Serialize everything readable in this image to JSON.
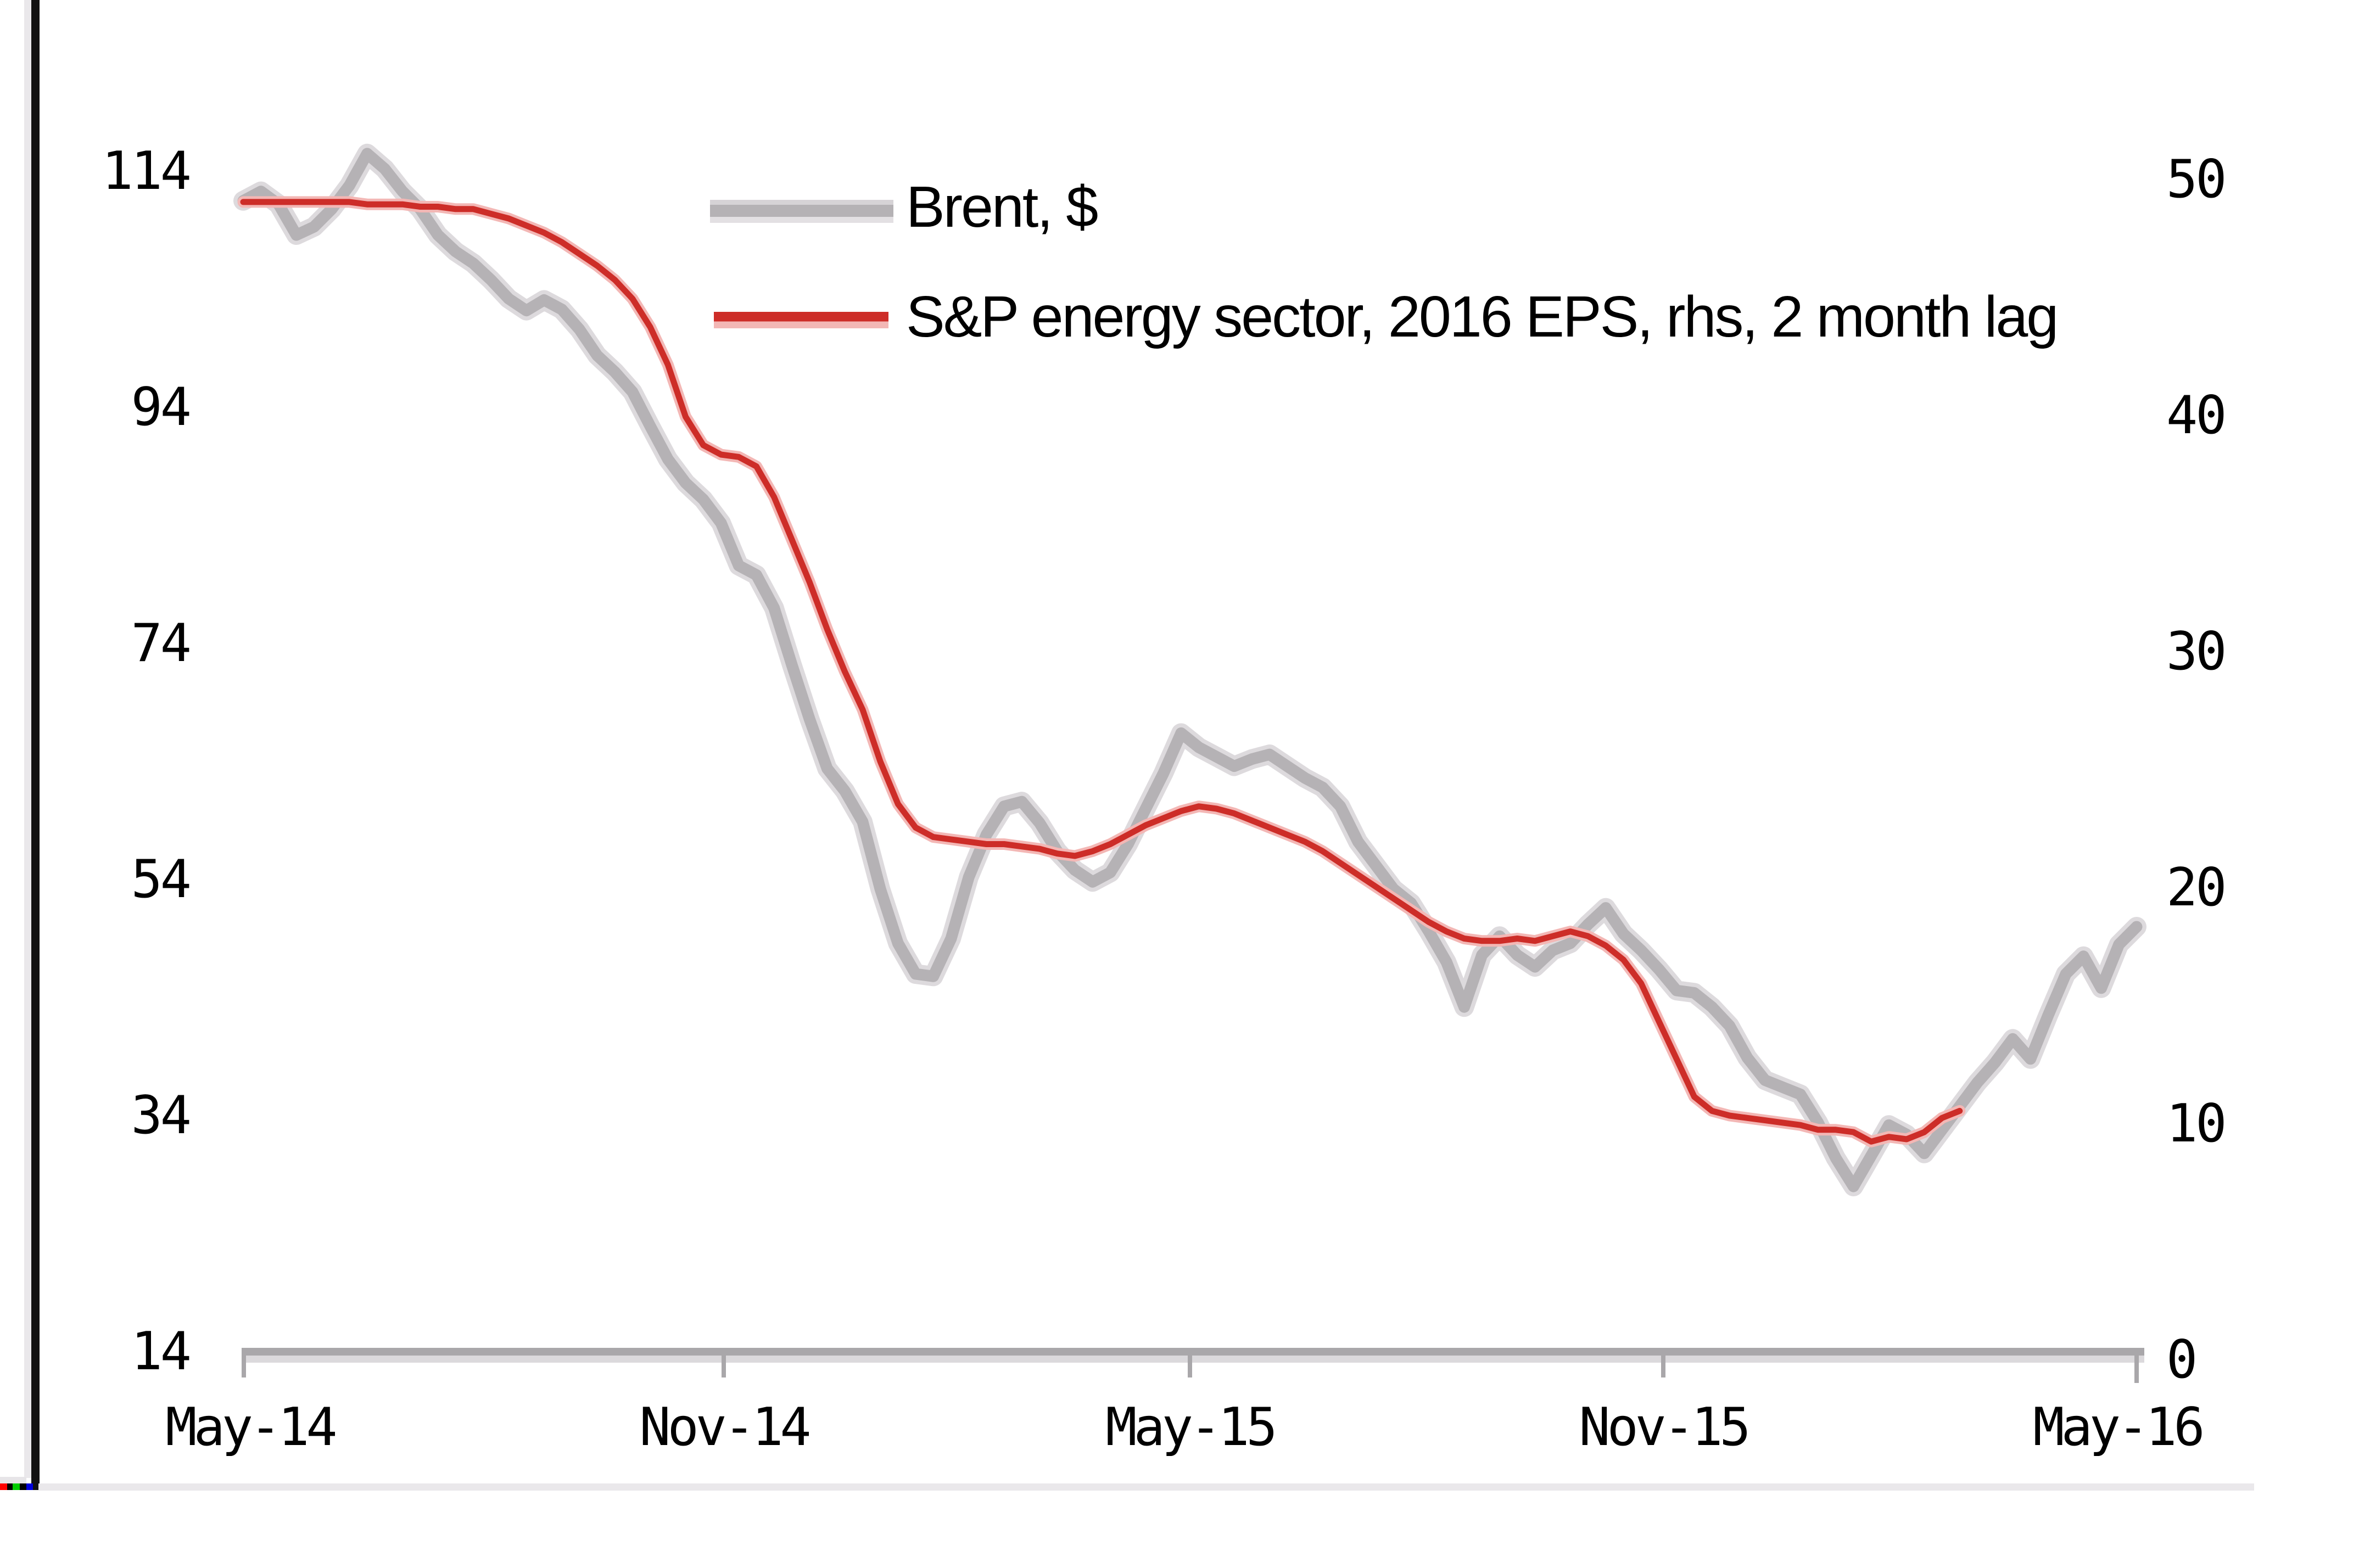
{
  "chart_data": {
    "type": "line",
    "title": "",
    "legend_position": "top-center-inside",
    "grid": "off",
    "legend": [
      {
        "label": "Brent, $",
        "color": "#b5b2b5",
        "axis": "left"
      },
      {
        "label": "S&P energy sector, 2016 EPS, rhs, 2 month lag",
        "color": "#cd2d28",
        "axis": "right"
      }
    ],
    "x_axis": {
      "tick_labels": [
        "May-14",
        "Nov-14",
        "May-15",
        "Nov-15",
        "May-16"
      ]
    },
    "y_axis_left": {
      "tick_labels": [
        "114",
        "94",
        "74",
        "54",
        "34",
        "14"
      ],
      "range": [
        14,
        114
      ]
    },
    "y_axis_right": {
      "tick_labels": [
        "50",
        "40",
        "30",
        "20",
        "10",
        "0"
      ],
      "range": [
        0,
        50
      ]
    },
    "series": [
      {
        "name": "Brent, $",
        "axis": "left",
        "values": [
          111.5,
          112.3,
          111.2,
          108.6,
          109.3,
          110.8,
          112.8,
          115.5,
          114.2,
          112.3,
          110.8,
          108.6,
          107.2,
          106.2,
          104.8,
          103.2,
          102.2,
          103.1,
          102.3,
          100.6,
          98.4,
          97.0,
          95.3,
          92.4,
          89.6,
          87.6,
          86.2,
          84.2,
          80.6,
          79.8,
          77.0,
          72.2,
          67.6,
          63.4,
          61.5,
          58.9,
          53.2,
          48.6,
          46.0,
          45.8,
          49.0,
          54.2,
          57.8,
          60.2,
          60.6,
          58.8,
          56.4,
          54.8,
          53.8,
          54.6,
          57.0,
          60.0,
          63.0,
          66.4,
          65.2,
          64.4,
          63.6,
          64.2,
          64.6,
          63.6,
          62.6,
          61.8,
          60.2,
          57.2,
          55.2,
          53.2,
          52.0,
          49.6,
          47.0,
          43.2,
          47.6,
          49.2,
          47.6,
          46.6,
          48.0,
          48.6,
          50.2,
          51.6,
          49.4,
          48.0,
          46.4,
          44.6,
          44.4,
          43.2,
          41.6,
          38.9,
          37.0,
          36.4,
          35.8,
          33.4,
          30.4,
          28.0,
          30.6,
          33.2,
          32.4,
          30.8,
          32.8,
          34.8,
          36.8,
          38.5,
          40.5,
          38.8,
          42.5,
          46.0,
          47.5,
          44.8,
          48.5,
          50.0
        ]
      },
      {
        "name": "S&P energy sector, 2016 EPS, rhs, 2 month lag",
        "axis": "right",
        "values": [
          48.7,
          48.7,
          48.7,
          48.7,
          48.7,
          48.7,
          48.7,
          48.6,
          48.6,
          48.6,
          48.5,
          48.5,
          48.4,
          48.4,
          48.2,
          48.0,
          47.7,
          47.4,
          47.0,
          46.5,
          46.0,
          45.4,
          44.6,
          43.4,
          41.8,
          39.6,
          38.4,
          38.0,
          37.9,
          37.5,
          36.2,
          34.4,
          32.6,
          30.6,
          28.8,
          27.2,
          25.0,
          23.2,
          22.2,
          21.8,
          21.7,
          21.6,
          21.5,
          21.5,
          21.4,
          21.3,
          21.1,
          21.0,
          21.2,
          21.5,
          21.9,
          22.3,
          22.6,
          22.9,
          23.1,
          23.0,
          22.8,
          22.5,
          22.2,
          21.9,
          21.6,
          21.2,
          20.7,
          20.2,
          19.7,
          19.2,
          18.7,
          18.2,
          17.8,
          17.5,
          17.4,
          17.4,
          17.5,
          17.4,
          17.6,
          17.8,
          17.6,
          17.2,
          16.6,
          15.6,
          14.0,
          12.4,
          10.8,
          10.2,
          10.0,
          9.9,
          9.8,
          9.7,
          9.6,
          9.4,
          9.4,
          9.3,
          8.9,
          9.1,
          9.0,
          9.3,
          9.9,
          10.2
        ]
      }
    ]
  },
  "colors": {
    "brent_core": "#b5b2b5",
    "brent_halo": "#dddadd",
    "eps_core": "#cd2d28",
    "eps_halo": "#f3b7b5",
    "axis_dark": "#a9a7aa",
    "axis_light": "#dbd9dc",
    "text": "#000000",
    "left_border": "#121212",
    "bottom_band": "#eae8eb",
    "artifact_red": "#ff0000",
    "artifact_green": "#00cc00",
    "artifact_blue": "#0000dd"
  }
}
